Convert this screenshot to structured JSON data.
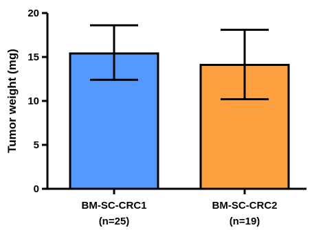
{
  "chart_data": {
    "type": "bar",
    "title": "",
    "xlabel": "",
    "ylabel": "Tumor weight (mg)",
    "ylim": [
      0,
      20
    ],
    "yticks": [
      0,
      5,
      10,
      15,
      20
    ],
    "grid": false,
    "legend": "none",
    "categories": [
      {
        "name": "BM-SC-CRC1",
        "n": "(n=25)"
      },
      {
        "name": "BM-SC-CRC2",
        "n": "(n=19)"
      }
    ],
    "values": [
      15.4,
      14.1
    ],
    "error": [
      {
        "low": 12.4,
        "high": 18.6
      },
      {
        "low": 10.2,
        "high": 18.1
      }
    ],
    "colors": [
      "#5599ff",
      "#ffa040"
    ]
  }
}
